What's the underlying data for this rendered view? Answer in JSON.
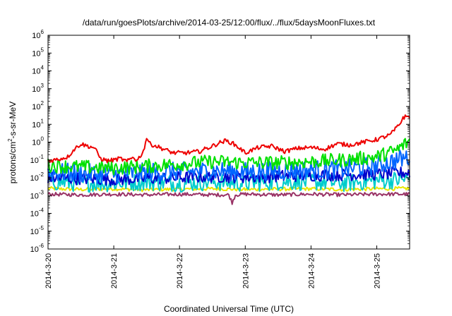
{
  "chart_data": {
    "type": "line",
    "title": "/data/run/goesPlots/archive/2014-03-25/12:00/flux/../flux/5daysMoonFluxes.txt",
    "xlabel": "Coordinated Universal Time (UTC)",
    "ylabel_parts": [
      "protons/cm",
      "2",
      "-s-sr-MeV"
    ],
    "xscale": "time",
    "yscale": "log",
    "xlim": [
      "2014-03-20",
      "2014-03-25T12:00"
    ],
    "ylim": [
      1e-06,
      1000000.0
    ],
    "grid": false,
    "legend": "none",
    "x_tick_labels": [
      "2014-3-20",
      "2014-3-21",
      "2014-3-22",
      "2014-3-23",
      "2014-3-24",
      "2014-3-25"
    ],
    "y_tick_labels": [
      {
        "base": "10",
        "exp": "-6"
      },
      {
        "base": "10",
        "exp": "-5"
      },
      {
        "base": "10",
        "exp": "-4"
      },
      {
        "base": "10",
        "exp": "-3"
      },
      {
        "base": "10",
        "exp": "-2"
      },
      {
        "base": "10",
        "exp": "-1"
      },
      {
        "base": "10",
        "exp": "0"
      },
      {
        "base": "10",
        "exp": "1"
      },
      {
        "base": "10",
        "exp": "2"
      },
      {
        "base": "10",
        "exp": "3"
      },
      {
        "base": "10",
        "exp": "4"
      },
      {
        "base": "10",
        "exp": "5"
      },
      {
        "base": "10",
        "exp": "6"
      }
    ],
    "series": [
      {
        "color": "#e8e800",
        "x": [
          0,
          0.5,
          1,
          1.5,
          2,
          2.5,
          3,
          3.5,
          4,
          4.5,
          5,
          5.5
        ],
        "values": [
          0.0025,
          0.0022,
          0.0024,
          0.0021,
          0.0023,
          0.0024,
          0.0022,
          0.0023,
          0.0024,
          0.0022,
          0.0024,
          0.0025
        ],
        "noise": 0.1
      },
      {
        "color": "#993366",
        "x": [
          0,
          0.5,
          1,
          1.5,
          2,
          2.5,
          2.75,
          2.8,
          2.85,
          3,
          3.5,
          4,
          4.5,
          5,
          5.5
        ],
        "values": [
          0.0012,
          0.0011,
          0.0012,
          0.0011,
          0.0012,
          0.0011,
          0.0011,
          0.0004,
          0.0011,
          0.0012,
          0.0011,
          0.0012,
          0.0011,
          0.0012,
          0.0012
        ],
        "noise": 0.1
      },
      {
        "color": "#00cccc",
        "x": [
          0,
          0.5,
          1,
          1.5,
          2,
          2.5,
          3,
          3.5,
          4,
          4.5,
          5,
          5.5
        ],
        "values": [
          0.006,
          0.005,
          0.005,
          0.006,
          0.005,
          0.006,
          0.005,
          0.006,
          0.006,
          0.005,
          0.007,
          0.008
        ],
        "noise": 0.5
      },
      {
        "color": "#0000cc",
        "x": [
          0,
          0.5,
          1,
          1.5,
          2,
          2.5,
          3,
          3.5,
          4,
          4.5,
          5,
          5.5
        ],
        "values": [
          0.01,
          0.009,
          0.008,
          0.009,
          0.01,
          0.012,
          0.011,
          0.012,
          0.014,
          0.015,
          0.016,
          0.02
        ],
        "noise": 0.35
      },
      {
        "color": "#0066ff",
        "x": [
          0,
          0.5,
          1,
          1.5,
          2,
          2.5,
          3,
          3.5,
          4,
          4.5,
          5,
          5.5
        ],
        "values": [
          0.02,
          0.018,
          0.015,
          0.02,
          0.022,
          0.025,
          0.022,
          0.025,
          0.028,
          0.03,
          0.05,
          0.15
        ],
        "noise": 0.55
      },
      {
        "color": "#00e000",
        "x": [
          0,
          0.5,
          1,
          1.5,
          2,
          2.5,
          3,
          3.5,
          4,
          4.5,
          5,
          5.3,
          5.5
        ],
        "values": [
          0.05,
          0.04,
          0.035,
          0.045,
          0.06,
          0.08,
          0.07,
          0.07,
          0.08,
          0.1,
          0.15,
          0.35,
          1.2
        ],
        "noise": 0.4
      },
      {
        "color": "#ee0000",
        "x": [
          0,
          0.1,
          0.2,
          0.3,
          0.4,
          0.5,
          0.6,
          0.7,
          0.8,
          0.9,
          1.0,
          1.1,
          1.2,
          1.3,
          1.35,
          1.45,
          1.5,
          1.55,
          1.7,
          1.9,
          2.1,
          2.3,
          2.5,
          2.6,
          2.7,
          2.8,
          2.9,
          3.0,
          3.2,
          3.4,
          3.6,
          3.8,
          4.0,
          4.2,
          4.4,
          4.6,
          4.8,
          5.0,
          5.2,
          5.35,
          5.4,
          5.5
        ],
        "values": [
          0.09,
          0.1,
          0.12,
          0.15,
          0.4,
          0.8,
          0.6,
          0.5,
          0.12,
          0.09,
          0.1,
          0.12,
          0.08,
          0.15,
          0.09,
          0.3,
          1.8,
          0.8,
          0.5,
          0.25,
          0.25,
          0.3,
          0.6,
          0.9,
          1.2,
          0.9,
          0.5,
          0.25,
          0.5,
          0.6,
          0.3,
          0.45,
          0.5,
          0.4,
          0.8,
          0.7,
          1.0,
          1.4,
          2.5,
          10,
          25,
          28
        ],
        "noise": 0.12
      }
    ]
  }
}
